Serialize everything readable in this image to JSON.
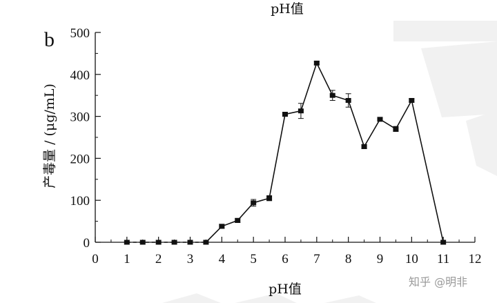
{
  "page_title": "pH值",
  "watermark": "知乎 @明非",
  "chart_data": {
    "type": "line",
    "panel_label": "b",
    "title": "",
    "xlabel": "pH值",
    "ylabel": "产毒量 / (μg/mL)",
    "xlim": [
      0,
      12
    ],
    "ylim": [
      0,
      500
    ],
    "x_ticks": [
      0,
      1,
      2,
      3,
      4,
      5,
      6,
      7,
      8,
      9,
      10,
      11,
      12
    ],
    "y_ticks": [
      0,
      100,
      200,
      300,
      400,
      500
    ],
    "grid": false,
    "legend": "none",
    "marker": "square",
    "line_color": "#111111",
    "series": [
      {
        "x": [
          1,
          1.5,
          2,
          2.5,
          3,
          3.5,
          4,
          4.5,
          5,
          5.5,
          6,
          6.5,
          7,
          7.5,
          8,
          8.5,
          9,
          9.5,
          10,
          11
        ],
        "y": [
          0,
          0,
          0,
          0,
          0,
          0,
          38,
          52,
          94,
          105,
          305,
          313,
          427,
          350,
          338,
          228,
          293,
          270,
          338,
          0
        ],
        "error": [
          0,
          0,
          0,
          0,
          0,
          0,
          5,
          5,
          8,
          6,
          5,
          18,
          4,
          12,
          16,
          5,
          4,
          6,
          4,
          0
        ]
      }
    ]
  }
}
